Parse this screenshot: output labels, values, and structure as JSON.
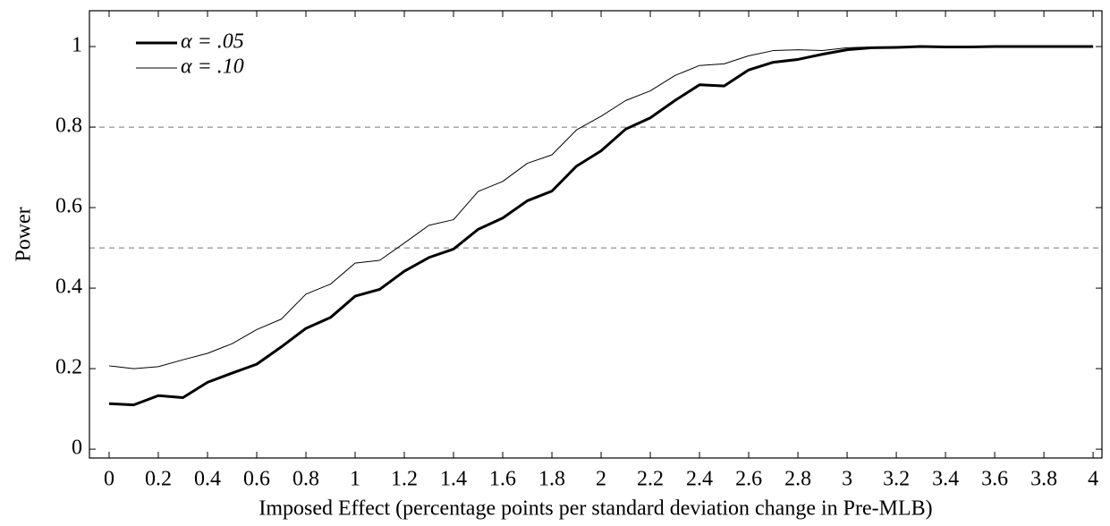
{
  "chart_data": {
    "type": "line",
    "xlabel": "Imposed Effect (percentage points per standard deviation change in Pre-MLB)",
    "ylabel": "Power",
    "x": [
      0,
      0.1,
      0.2,
      0.3,
      0.4,
      0.5,
      0.6,
      0.7,
      0.8,
      0.9,
      1,
      1.1,
      1.2,
      1.3,
      1.4,
      1.5,
      1.6,
      1.7,
      1.8,
      1.9,
      2,
      2.1,
      2.2,
      2.3,
      2.4,
      2.5,
      2.6,
      2.7,
      2.8,
      2.9,
      3,
      3.1,
      3.2,
      3.3,
      3.4,
      3.5,
      3.6,
      3.7,
      3.8,
      3.9,
      4
    ],
    "series": [
      {
        "name": "α = .05",
        "color": "#000000",
        "line_width": 3,
        "values": [
          0.113,
          0.11,
          0.133,
          0.128,
          0.166,
          0.189,
          0.211,
          0.254,
          0.3,
          0.327,
          0.38,
          0.397,
          0.442,
          0.476,
          0.497,
          0.546,
          0.574,
          0.617,
          0.641,
          0.703,
          0.741,
          0.795,
          0.823,
          0.866,
          0.905,
          0.902,
          0.942,
          0.961,
          0.968,
          0.981,
          0.992,
          0.997,
          0.998,
          1,
          0.999,
          0.999,
          1,
          1,
          1,
          1,
          1
        ]
      },
      {
        "name": "α = .10",
        "color": "#000000",
        "line_width": 1,
        "values": [
          0.207,
          0.2,
          0.205,
          0.222,
          0.238,
          0.262,
          0.297,
          0.323,
          0.385,
          0.41,
          0.462,
          0.469,
          0.512,
          0.556,
          0.57,
          0.64,
          0.665,
          0.71,
          0.731,
          0.793,
          0.827,
          0.866,
          0.89,
          0.928,
          0.953,
          0.957,
          0.977,
          0.99,
          0.992,
          0.99,
          0.997,
          0.999,
          0.999,
          1,
          1,
          1,
          1,
          1,
          1,
          1,
          1
        ]
      }
    ],
    "xlim": [
      -0.08,
      4.036
    ],
    "ylim": [
      -0.022,
      1.089
    ],
    "xticks": [
      0,
      0.2,
      0.4,
      0.6,
      0.8,
      1,
      1.2,
      1.4,
      1.6,
      1.8,
      2,
      2.2,
      2.4,
      2.6,
      2.8,
      3,
      3.2,
      3.4,
      3.6,
      3.8,
      4
    ],
    "yticks": [
      0,
      0.2,
      0.4,
      0.6,
      0.8,
      1
    ],
    "reference_lines": [
      0.5,
      0.8
    ],
    "legend": "upper-left"
  }
}
